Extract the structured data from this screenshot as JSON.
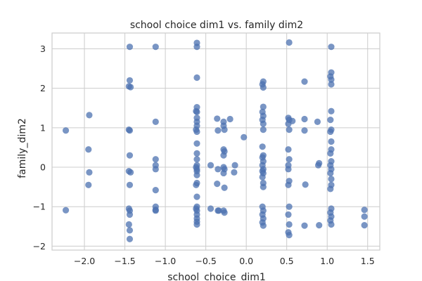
{
  "chart_data": {
    "type": "scatter",
    "title": "school choice dim1 vs. family dim2",
    "xlabel": "school_choice_dim1",
    "ylabel": "family_dim2",
    "xlim": [
      -2.4,
      1.65
    ],
    "ylim": [
      -2.1,
      3.4
    ],
    "xticks": [
      -2.0,
      -1.5,
      -1.0,
      -0.5,
      0.0,
      0.5,
      1.0,
      1.5
    ],
    "xtick_labels": [
      "−2.0",
      "−1.5",
      "−1.0",
      "−0.5",
      "0.0",
      "0.5",
      "1.0",
      "1.5"
    ],
    "yticks": [
      -2,
      -1,
      0,
      1,
      2,
      3
    ],
    "ytick_labels": [
      "−2",
      "−1",
      "0",
      "1",
      "2",
      "3"
    ],
    "grid": true,
    "color": "#4c72b0",
    "points": [
      [
        -2.23,
        0.93
      ],
      [
        -2.23,
        -1.09
      ],
      [
        -1.94,
        1.32
      ],
      [
        -1.95,
        0.45
      ],
      [
        -1.94,
        -0.13
      ],
      [
        -1.95,
        -0.45
      ],
      [
        -1.44,
        3.05
      ],
      [
        -1.44,
        2.2
      ],
      [
        -1.45,
        2.05
      ],
      [
        -1.43,
        2.03
      ],
      [
        -1.45,
        0.95
      ],
      [
        -1.44,
        0.93
      ],
      [
        -1.44,
        0.3
      ],
      [
        -1.45,
        -0.1
      ],
      [
        -1.43,
        -0.13
      ],
      [
        -1.44,
        -0.45
      ],
      [
        -1.45,
        -1.05
      ],
      [
        -1.44,
        -1.1
      ],
      [
        -1.44,
        -1.2
      ],
      [
        -1.45,
        -1.45
      ],
      [
        -1.44,
        -1.6
      ],
      [
        -1.44,
        -1.82
      ],
      [
        -1.12,
        3.05
      ],
      [
        -1.12,
        1.15
      ],
      [
        -1.12,
        0.2
      ],
      [
        -1.12,
        0.05
      ],
      [
        -1.12,
        -0.05
      ],
      [
        -1.12,
        -0.58
      ],
      [
        -1.12,
        -1.0
      ],
      [
        -1.12,
        -1.08
      ],
      [
        -1.12,
        -1.1
      ],
      [
        -0.61,
        3.15
      ],
      [
        -0.61,
        3.05
      ],
      [
        -0.61,
        2.27
      ],
      [
        -0.61,
        1.52
      ],
      [
        -0.62,
        1.42
      ],
      [
        -0.61,
        1.4
      ],
      [
        -0.61,
        1.25
      ],
      [
        -0.61,
        1.15
      ],
      [
        -0.61,
        1.05
      ],
      [
        -0.62,
        0.95
      ],
      [
        -0.61,
        0.9
      ],
      [
        -0.61,
        0.6
      ],
      [
        -0.61,
        0.35
      ],
      [
        -0.61,
        0.2
      ],
      [
        -0.61,
        0.05
      ],
      [
        -0.62,
        0.0
      ],
      [
        -0.61,
        -0.05
      ],
      [
        -0.61,
        -0.1
      ],
      [
        -0.61,
        -0.2
      ],
      [
        -0.61,
        -0.4
      ],
      [
        -0.62,
        -0.45
      ],
      [
        -0.61,
        -0.75
      ],
      [
        -0.61,
        -1.0
      ],
      [
        -0.62,
        -1.05
      ],
      [
        -0.61,
        -1.1
      ],
      [
        -0.61,
        -1.2
      ],
      [
        -0.61,
        -1.3
      ],
      [
        -0.61,
        -1.38
      ],
      [
        -0.61,
        -1.45
      ],
      [
        -0.44,
        0.05
      ],
      [
        -0.44,
        -1.05
      ],
      [
        -0.36,
        1.23
      ],
      [
        -0.35,
        0.93
      ],
      [
        -0.35,
        -0.05
      ],
      [
        -0.36,
        -0.42
      ],
      [
        -0.35,
        -1.1
      ],
      [
        -0.34,
        -1.1
      ],
      [
        -0.28,
        1.15
      ],
      [
        -0.28,
        1.05
      ],
      [
        -0.27,
        0.95
      ],
      [
        -0.28,
        0.45
      ],
      [
        -0.27,
        0.4
      ],
      [
        -0.28,
        0.3
      ],
      [
        -0.28,
        0.0
      ],
      [
        -0.27,
        -0.05
      ],
      [
        -0.28,
        -0.15
      ],
      [
        -0.27,
        -0.52
      ],
      [
        -0.28,
        -1.1
      ],
      [
        -0.27,
        -1.15
      ],
      [
        -0.2,
        1.22
      ],
      [
        -0.14,
        0.05
      ],
      [
        -0.15,
        -0.13
      ],
      [
        -0.03,
        0.76
      ],
      [
        0.21,
        2.17
      ],
      [
        0.2,
        2.1
      ],
      [
        0.21,
        2.02
      ],
      [
        0.21,
        1.53
      ],
      [
        0.2,
        1.4
      ],
      [
        0.21,
        1.3
      ],
      [
        0.2,
        1.2
      ],
      [
        0.21,
        1.1
      ],
      [
        0.21,
        0.95
      ],
      [
        0.2,
        0.52
      ],
      [
        0.21,
        0.3
      ],
      [
        0.2,
        0.25
      ],
      [
        0.21,
        0.15
      ],
      [
        0.2,
        0.05
      ],
      [
        0.21,
        -0.05
      ],
      [
        0.2,
        -0.1
      ],
      [
        0.21,
        -0.15
      ],
      [
        0.2,
        -0.25
      ],
      [
        0.21,
        -0.4
      ],
      [
        0.21,
        -0.5
      ],
      [
        0.2,
        -1.0
      ],
      [
        0.21,
        -1.1
      ],
      [
        0.2,
        -1.2
      ],
      [
        0.21,
        -1.3
      ],
      [
        0.2,
        -1.4
      ],
      [
        0.21,
        -1.48
      ],
      [
        0.53,
        3.16
      ],
      [
        0.52,
        1.25
      ],
      [
        0.53,
        1.2
      ],
      [
        0.52,
        1.1
      ],
      [
        0.53,
        0.95
      ],
      [
        0.52,
        0.45
      ],
      [
        0.53,
        0.2
      ],
      [
        0.52,
        0.05
      ],
      [
        0.52,
        -0.05
      ],
      [
        0.53,
        -0.35
      ],
      [
        0.52,
        -0.45
      ],
      [
        0.53,
        -1.0
      ],
      [
        0.52,
        -1.2
      ],
      [
        0.53,
        -1.45
      ],
      [
        0.52,
        -1.65
      ],
      [
        0.53,
        -1.72
      ],
      [
        0.57,
        1.17
      ],
      [
        0.72,
        2.17
      ],
      [
        0.72,
        1.22
      ],
      [
        0.72,
        0.93
      ],
      [
        0.73,
        -0.44
      ],
      [
        0.72,
        -1.48
      ],
      [
        0.88,
        1.15
      ],
      [
        0.9,
        0.1
      ],
      [
        0.89,
        0.05
      ],
      [
        0.9,
        -1.47
      ],
      [
        1.05,
        3.05
      ],
      [
        1.05,
        2.4
      ],
      [
        1.04,
        2.3
      ],
      [
        1.05,
        2.22
      ],
      [
        1.05,
        2.1
      ],
      [
        1.05,
        1.42
      ],
      [
        1.04,
        1.2
      ],
      [
        1.05,
        0.95
      ],
      [
        1.04,
        0.9
      ],
      [
        1.05,
        0.65
      ],
      [
        1.05,
        0.45
      ],
      [
        1.04,
        0.35
      ],
      [
        1.05,
        0.15
      ],
      [
        1.04,
        0.05
      ],
      [
        1.05,
        -0.05
      ],
      [
        1.04,
        -0.15
      ],
      [
        1.05,
        -0.3
      ],
      [
        1.05,
        -0.45
      ],
      [
        1.04,
        -0.55
      ],
      [
        1.05,
        -1.05
      ],
      [
        1.04,
        -1.15
      ],
      [
        1.05,
        -1.25
      ],
      [
        1.04,
        -1.35
      ],
      [
        1.05,
        -1.45
      ],
      [
        1.46,
        -1.08
      ],
      [
        1.46,
        -1.25
      ],
      [
        1.46,
        -1.47
      ]
    ]
  }
}
